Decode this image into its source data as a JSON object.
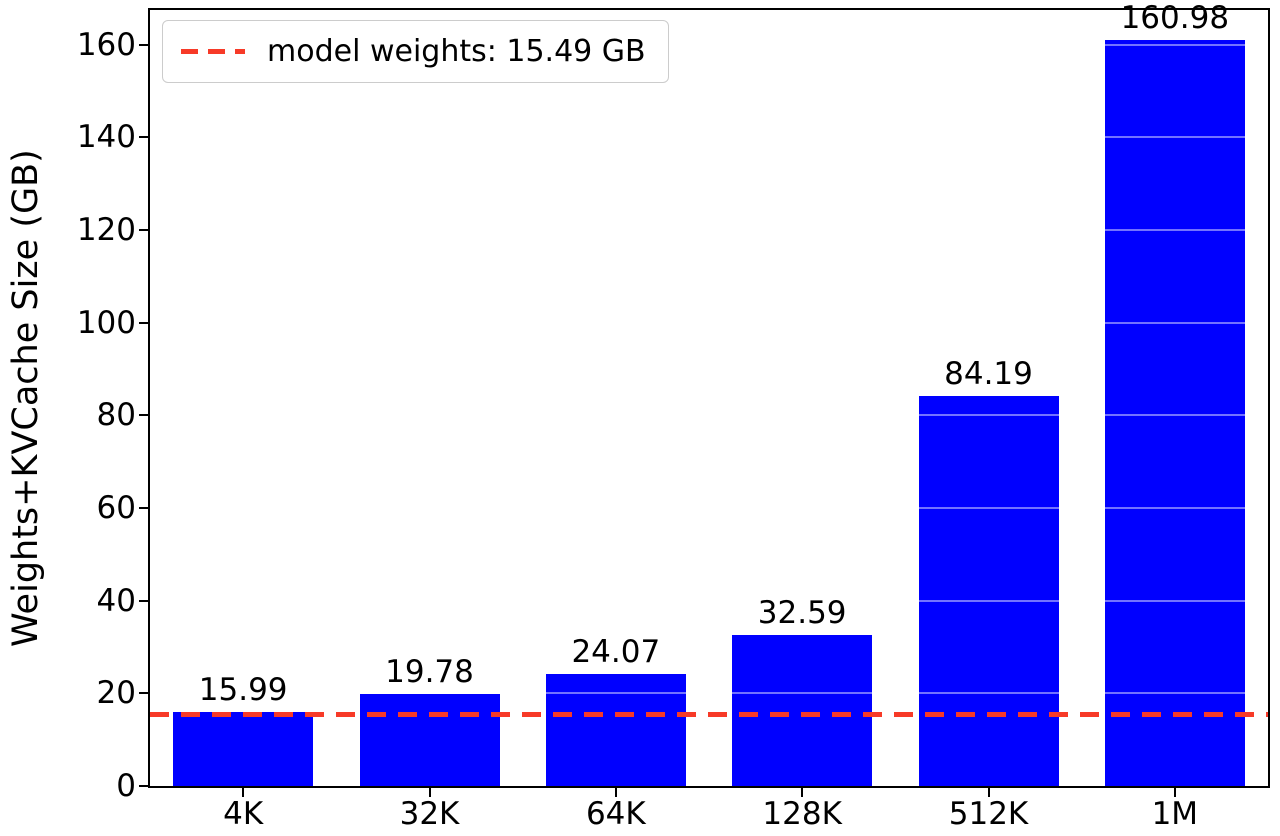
{
  "chart_data": {
    "type": "bar",
    "title": "",
    "categories": [
      "4K",
      "32K",
      "64K",
      "128K",
      "512K",
      "1M"
    ],
    "values": [
      15.99,
      19.78,
      24.07,
      32.59,
      84.19,
      160.98
    ],
    "bar_labels": [
      "15.99",
      "19.78",
      "24.07",
      "32.59",
      "84.19",
      "160.98"
    ],
    "xlabel": "",
    "ylabel": "Weights+KVCache Size (GB)",
    "ylim": [
      0,
      167.5
    ],
    "yticks": [
      0,
      20,
      40,
      60,
      80,
      100,
      120,
      140,
      160
    ],
    "grid": "faint white horizontal gridlines over bars",
    "bar_color": "#0000ff",
    "text_color": "#000000",
    "reference_line": {
      "value": 15.49,
      "label": "model weights: 15.49 GB",
      "color": "#f73a28",
      "style": "dashed"
    },
    "legend_position": "upper-left"
  }
}
